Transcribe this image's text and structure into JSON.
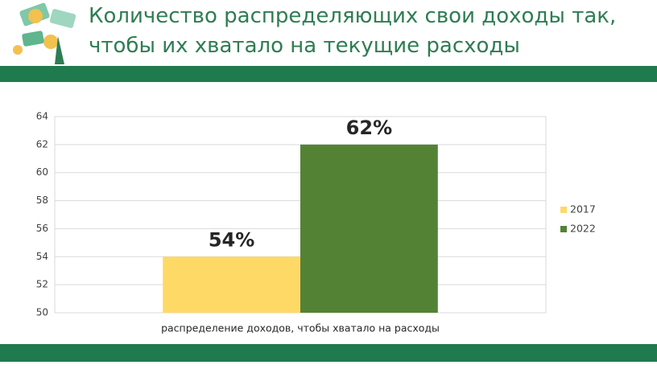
{
  "chart_data": {
    "type": "bar",
    "title": "Количество распределяющих свои доходы так,\nчтобы их хватало на текущие расходы",
    "categories": [
      "распределение доходов, чтобы хватало на расходы"
    ],
    "series": [
      {
        "name": "2017",
        "color": "#ffd966",
        "values": [
          54
        ],
        "value_labels": [
          "54%"
        ]
      },
      {
        "name": "2022",
        "color": "#548235",
        "values": [
          62
        ],
        "value_labels": [
          "62%"
        ]
      }
    ],
    "ylim": [
      50,
      64
    ],
    "yticks": [
      50,
      52,
      54,
      56,
      58,
      60,
      62,
      64
    ],
    "grid": true,
    "legend": "right"
  }
}
